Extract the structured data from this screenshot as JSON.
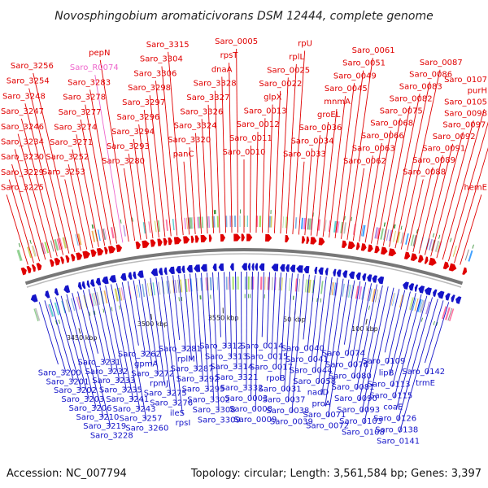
{
  "title": "Novosphingobium aromaticivorans DSM 12444, complete genome",
  "footer": {
    "accession": "Accession: NC_007794",
    "summary": "Topology: circular; Length: 3,561,584 bp; Genes: 3,397"
  },
  "colors": {
    "forward": "#e00000",
    "reverse": "#1414c8",
    "rna": "#ee66cc",
    "backbone": "#777777",
    "tick": "#2a8a2a"
  },
  "scale": {
    "ticks": [
      "3450 kbp",
      "3500 kbp",
      "3550 kbp",
      "50 kbp",
      "100 kbp"
    ]
  },
  "top_labels": [
    "Saro_3225",
    "Saro_3229",
    "Saro_3230",
    "Saro_3234",
    "Saro_3246",
    "Saro_3247",
    "Saro_3248",
    "Saro_3254",
    "Saro_3256",
    "Saro_3253",
    "Saro_3252",
    "Saro_3271",
    "Saro_3274",
    "Saro_3277",
    "Saro_3278",
    "Saro_3283",
    "Saro_R0074",
    "pepN",
    "Saro_3280",
    "Saro_3293",
    "Saro_3294",
    "Saro_3296",
    "Saro_3297",
    "Saro_3298",
    "Saro_3306",
    "Saro_3304",
    "Saro_3315",
    "panC",
    "Saro_3320",
    "Saro_3324",
    "Saro_3326",
    "Saro_3327",
    "Saro_3328",
    "dnaA",
    "rpsT",
    "Saro_0005",
    "Saro_0010",
    "Saro_0011",
    "Saro_0012",
    "Saro_0013",
    "glpX",
    "Saro_0022",
    "Saro_0025",
    "rplL",
    "rpU",
    "Saro_0033",
    "Saro_0034",
    "Saro_0036",
    "groEL",
    "mnmA",
    "Saro_0045",
    "Saro_0049",
    "Saro_0051",
    "Saro_0061",
    "Saro_0062",
    "Saro_0063",
    "Saro_0066",
    "Saro_0068",
    "Saro_0075",
    "Saro_0082",
    "Saro_0083",
    "Saro_0086",
    "Saro_0087",
    "Saro_0088",
    "Saro_0089",
    "Saro_0091",
    "Saro_0092",
    "Saro_0097",
    "Saro_0098",
    "Saro_0105",
    "purH",
    "Saro_0107",
    "hemE"
  ],
  "bottom_labels": [
    "Saro_3200",
    "Saro_3201",
    "Saro_3202",
    "Saro_3203",
    "Saro_3206",
    "Saro_3210",
    "Saro_3219",
    "Saro_3228",
    "Saro_3231",
    "Saro_3232",
    "Saro_3233",
    "Saro_3235",
    "Saro_3241",
    "Saro_3243",
    "Saro_3257",
    "Saro_3260",
    "Saro_3262",
    "gpmA",
    "Saro_3272",
    "rpmJ",
    "Saro_3275",
    "Saro_3276",
    "ileS",
    "rpsI",
    "Saro_3281",
    "rplM",
    "Saro_3287",
    "Saro_3292",
    "Saro_3295",
    "Saro_3302",
    "Saro_3308",
    "Saro_3309",
    "Saro_3312",
    "Saro_3313",
    "Saro_3314",
    "Saro_3321",
    "Saro_3332",
    "Saro_0003",
    "Saro_0008",
    "Saro_0009",
    "Saro_0014",
    "Saro_0015",
    "Saro_0017",
    "rpoB",
    "Saro_0031",
    "Saro_0037",
    "Saro_0038",
    "Saro_0039",
    "Saro_0040",
    "Saro_0041",
    "Saro_0044",
    "Saro_0058",
    "nadD",
    "proA",
    "Saro_0071",
    "Saro_0072",
    "Saro_0074",
    "Saro_0076",
    "Saro_0080",
    "Saro_0081",
    "Saro_0090",
    "Saro_0093",
    "Saro_0103",
    "Saro_0108",
    "Saro_0109",
    "lipB",
    "Saro_0113",
    "Saro_0115",
    "coaE",
    "Saro_0126",
    "Saro_0138",
    "Saro_0141",
    "Saro_0142",
    "trmE"
  ]
}
